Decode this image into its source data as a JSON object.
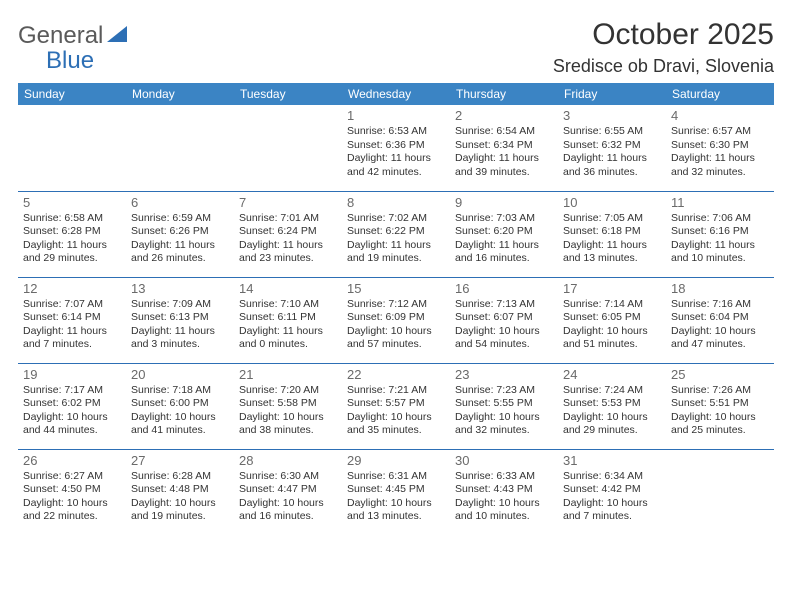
{
  "logo": {
    "part1": "General",
    "part2": "Blue"
  },
  "title": "October 2025",
  "location": "Sredisce ob Dravi, Slovenia",
  "colors": {
    "header_bg": "#3b84c4",
    "header_text": "#ffffff",
    "border": "#2d6fb5",
    "daynum": "#6a6a6a",
    "body_text": "#333333",
    "logo_gray": "#5a5a5a",
    "logo_blue": "#2d6fb5"
  },
  "weekdays": [
    "Sunday",
    "Monday",
    "Tuesday",
    "Wednesday",
    "Thursday",
    "Friday",
    "Saturday"
  ],
  "weeks": [
    [
      null,
      null,
      null,
      {
        "n": "1",
        "sr": "6:53 AM",
        "ss": "6:36 PM",
        "dl": "11 hours and 42 minutes."
      },
      {
        "n": "2",
        "sr": "6:54 AM",
        "ss": "6:34 PM",
        "dl": "11 hours and 39 minutes."
      },
      {
        "n": "3",
        "sr": "6:55 AM",
        "ss": "6:32 PM",
        "dl": "11 hours and 36 minutes."
      },
      {
        "n": "4",
        "sr": "6:57 AM",
        "ss": "6:30 PM",
        "dl": "11 hours and 32 minutes."
      }
    ],
    [
      {
        "n": "5",
        "sr": "6:58 AM",
        "ss": "6:28 PM",
        "dl": "11 hours and 29 minutes."
      },
      {
        "n": "6",
        "sr": "6:59 AM",
        "ss": "6:26 PM",
        "dl": "11 hours and 26 minutes."
      },
      {
        "n": "7",
        "sr": "7:01 AM",
        "ss": "6:24 PM",
        "dl": "11 hours and 23 minutes."
      },
      {
        "n": "8",
        "sr": "7:02 AM",
        "ss": "6:22 PM",
        "dl": "11 hours and 19 minutes."
      },
      {
        "n": "9",
        "sr": "7:03 AM",
        "ss": "6:20 PM",
        "dl": "11 hours and 16 minutes."
      },
      {
        "n": "10",
        "sr": "7:05 AM",
        "ss": "6:18 PM",
        "dl": "11 hours and 13 minutes."
      },
      {
        "n": "11",
        "sr": "7:06 AM",
        "ss": "6:16 PM",
        "dl": "11 hours and 10 minutes."
      }
    ],
    [
      {
        "n": "12",
        "sr": "7:07 AM",
        "ss": "6:14 PM",
        "dl": "11 hours and 7 minutes."
      },
      {
        "n": "13",
        "sr": "7:09 AM",
        "ss": "6:13 PM",
        "dl": "11 hours and 3 minutes."
      },
      {
        "n": "14",
        "sr": "7:10 AM",
        "ss": "6:11 PM",
        "dl": "11 hours and 0 minutes."
      },
      {
        "n": "15",
        "sr": "7:12 AM",
        "ss": "6:09 PM",
        "dl": "10 hours and 57 minutes."
      },
      {
        "n": "16",
        "sr": "7:13 AM",
        "ss": "6:07 PM",
        "dl": "10 hours and 54 minutes."
      },
      {
        "n": "17",
        "sr": "7:14 AM",
        "ss": "6:05 PM",
        "dl": "10 hours and 51 minutes."
      },
      {
        "n": "18",
        "sr": "7:16 AM",
        "ss": "6:04 PM",
        "dl": "10 hours and 47 minutes."
      }
    ],
    [
      {
        "n": "19",
        "sr": "7:17 AM",
        "ss": "6:02 PM",
        "dl": "10 hours and 44 minutes."
      },
      {
        "n": "20",
        "sr": "7:18 AM",
        "ss": "6:00 PM",
        "dl": "10 hours and 41 minutes."
      },
      {
        "n": "21",
        "sr": "7:20 AM",
        "ss": "5:58 PM",
        "dl": "10 hours and 38 minutes."
      },
      {
        "n": "22",
        "sr": "7:21 AM",
        "ss": "5:57 PM",
        "dl": "10 hours and 35 minutes."
      },
      {
        "n": "23",
        "sr": "7:23 AM",
        "ss": "5:55 PM",
        "dl": "10 hours and 32 minutes."
      },
      {
        "n": "24",
        "sr": "7:24 AM",
        "ss": "5:53 PM",
        "dl": "10 hours and 29 minutes."
      },
      {
        "n": "25",
        "sr": "7:26 AM",
        "ss": "5:51 PM",
        "dl": "10 hours and 25 minutes."
      }
    ],
    [
      {
        "n": "26",
        "sr": "6:27 AM",
        "ss": "4:50 PM",
        "dl": "10 hours and 22 minutes."
      },
      {
        "n": "27",
        "sr": "6:28 AM",
        "ss": "4:48 PM",
        "dl": "10 hours and 19 minutes."
      },
      {
        "n": "28",
        "sr": "6:30 AM",
        "ss": "4:47 PM",
        "dl": "10 hours and 16 minutes."
      },
      {
        "n": "29",
        "sr": "6:31 AM",
        "ss": "4:45 PM",
        "dl": "10 hours and 13 minutes."
      },
      {
        "n": "30",
        "sr": "6:33 AM",
        "ss": "4:43 PM",
        "dl": "10 hours and 10 minutes."
      },
      {
        "n": "31",
        "sr": "6:34 AM",
        "ss": "4:42 PM",
        "dl": "10 hours and 7 minutes."
      },
      null
    ]
  ],
  "labels": {
    "sunrise": "Sunrise:",
    "sunset": "Sunset:",
    "daylight": "Daylight:"
  }
}
